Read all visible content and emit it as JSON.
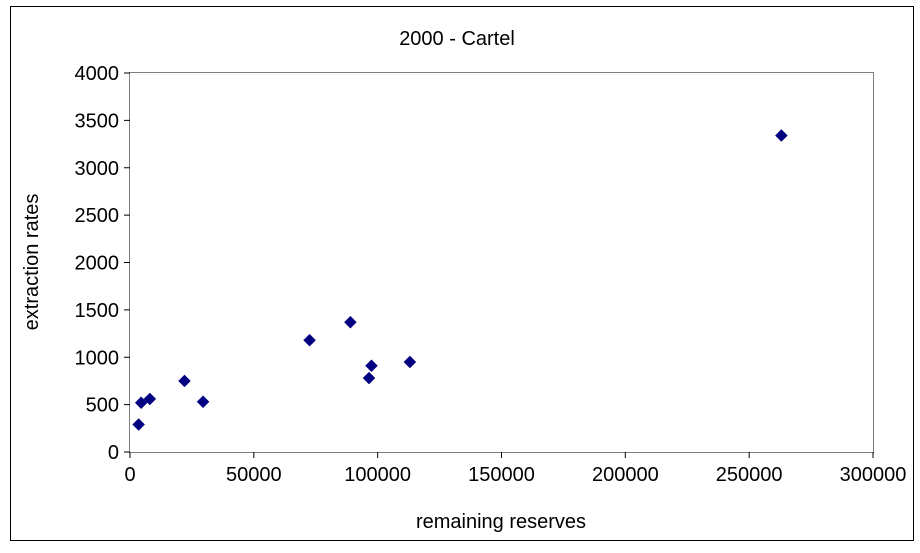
{
  "chart_data": {
    "type": "scatter",
    "title": "2000 - Cartel",
    "xlabel": "remaining reserves",
    "ylabel": "extraction rates",
    "xlim": [
      0,
      300000
    ],
    "ylim": [
      0,
      4000
    ],
    "xticks": [
      0,
      50000,
      100000,
      150000,
      200000,
      250000,
      300000
    ],
    "yticks": [
      0,
      500,
      1000,
      1500,
      2000,
      2500,
      3000,
      3500,
      4000
    ],
    "grid": false,
    "legend": "none",
    "marker": "diamond",
    "marker_color": "#000080",
    "points": [
      {
        "x": 3500,
        "y": 290
      },
      {
        "x": 4500,
        "y": 520
      },
      {
        "x": 8000,
        "y": 560
      },
      {
        "x": 22000,
        "y": 750
      },
      {
        "x": 29500,
        "y": 530
      },
      {
        "x": 72500,
        "y": 1180
      },
      {
        "x": 89000,
        "y": 1370
      },
      {
        "x": 96500,
        "y": 780
      },
      {
        "x": 97500,
        "y": 910
      },
      {
        "x": 113000,
        "y": 950
      },
      {
        "x": 263000,
        "y": 3340
      }
    ]
  }
}
